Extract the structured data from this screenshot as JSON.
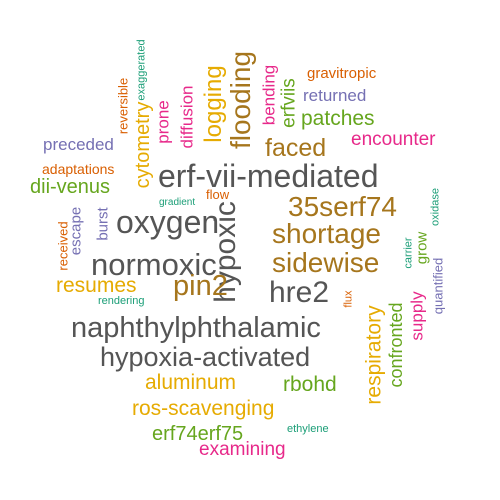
{
  "colors": {
    "dark_gray": "#555555",
    "brown": "#A6761D",
    "orange": "#E6AB02",
    "green": "#66A61E",
    "magenta": "#E7298A",
    "purple": "#7570B3",
    "burnt_orange": "#D95F02",
    "teal": "#1B9E77"
  },
  "words": [
    {
      "text": "naphthylphthalamic",
      "color": "dark_gray"
    },
    {
      "text": "erf-vii-mediated",
      "color": "dark_gray"
    },
    {
      "text": "hypoxia-activated",
      "color": "dark_gray"
    },
    {
      "text": "normoxic",
      "color": "dark_gray"
    },
    {
      "text": "oxygen",
      "color": "dark_gray"
    },
    {
      "text": "hypoxic",
      "color": "dark_gray"
    },
    {
      "text": "hre2",
      "color": "dark_gray"
    },
    {
      "text": "flooding",
      "color": "brown"
    },
    {
      "text": "35serf74",
      "color": "brown"
    },
    {
      "text": "shortage",
      "color": "brown"
    },
    {
      "text": "sidewise",
      "color": "brown"
    },
    {
      "text": "pin2",
      "color": "brown"
    },
    {
      "text": "faced",
      "color": "brown"
    },
    {
      "text": "logging",
      "color": "orange"
    },
    {
      "text": "cytometry",
      "color": "orange"
    },
    {
      "text": "resumes",
      "color": "orange"
    },
    {
      "text": "aluminum",
      "color": "orange"
    },
    {
      "text": "ros-scavenging",
      "color": "orange"
    },
    {
      "text": "respiratory",
      "color": "orange"
    },
    {
      "text": "patches",
      "color": "green"
    },
    {
      "text": "erfviis",
      "color": "green"
    },
    {
      "text": "dii-venus",
      "color": "green"
    },
    {
      "text": "rbohd",
      "color": "green"
    },
    {
      "text": "erf74erf75",
      "color": "green"
    },
    {
      "text": "confronted",
      "color": "green"
    },
    {
      "text": "grow",
      "color": "green"
    },
    {
      "text": "encounter",
      "color": "magenta"
    },
    {
      "text": "examining",
      "color": "magenta"
    },
    {
      "text": "supply",
      "color": "magenta"
    },
    {
      "text": "bending",
      "color": "magenta"
    },
    {
      "text": "diffusion",
      "color": "magenta"
    },
    {
      "text": "prone",
      "color": "magenta"
    },
    {
      "text": "returned",
      "color": "purple"
    },
    {
      "text": "preceded",
      "color": "purple"
    },
    {
      "text": "escape",
      "color": "purple"
    },
    {
      "text": "burst",
      "color": "purple"
    },
    {
      "text": "quantified",
      "color": "purple"
    },
    {
      "text": "gravitropic",
      "color": "burnt_orange"
    },
    {
      "text": "adaptations",
      "color": "burnt_orange"
    },
    {
      "text": "reversible",
      "color": "burnt_orange"
    },
    {
      "text": "received",
      "color": "burnt_orange"
    },
    {
      "text": "flow",
      "color": "burnt_orange"
    },
    {
      "text": "flux",
      "color": "burnt_orange"
    },
    {
      "text": "exaggerated",
      "color": "teal"
    },
    {
      "text": "gradient",
      "color": "teal"
    },
    {
      "text": "oxidase",
      "color": "teal"
    },
    {
      "text": "carrier",
      "color": "teal"
    },
    {
      "text": "rendering",
      "color": "teal"
    },
    {
      "text": "ethylene",
      "color": "teal"
    }
  ]
}
